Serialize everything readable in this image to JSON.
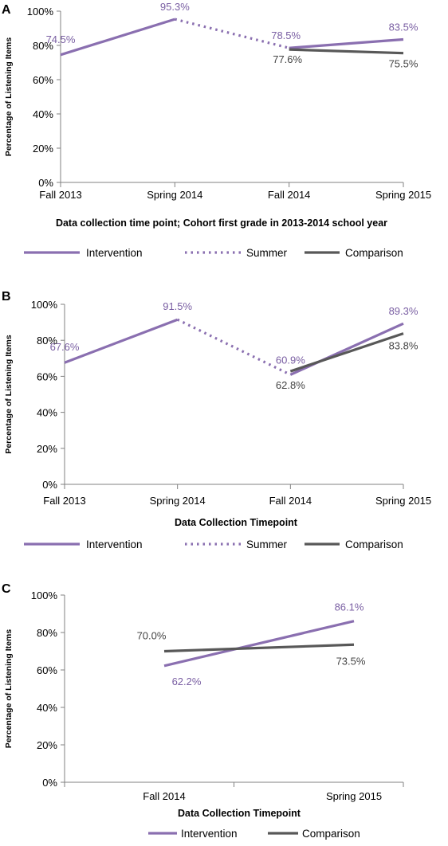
{
  "colors": {
    "intervention": "#8a6fb0",
    "comparison": "#585858",
    "intervention_label": "#7a5fa3",
    "comparison_label": "#444444",
    "axis": "#808080"
  },
  "chart_data": [
    {
      "panel": "A",
      "type": "line",
      "categories": [
        "Fall 2013",
        "Spring 2014",
        "Fall 2014",
        "Spring 2015"
      ],
      "xlabel": "Data collection time point; Cohort first grade in 2013-2014 school year",
      "ylabel": "Percentage of Listening Items",
      "ylim": [
        0,
        100
      ],
      "yticks": [
        "0%",
        "20%",
        "40%",
        "60%",
        "80%",
        "100%"
      ],
      "series": [
        {
          "name": "Intervention",
          "segments": [
            [
              0,
              1
            ],
            [
              2,
              3
            ]
          ],
          "values": [
            74.5,
            95.3,
            78.5,
            83.5
          ],
          "labels": [
            "74.5%",
            "95.3%",
            "78.5%",
            "83.5%"
          ]
        },
        {
          "name": "Summer",
          "segments": [
            [
              1,
              2
            ]
          ],
          "values": [
            null,
            95.3,
            78.5,
            null
          ]
        },
        {
          "name": "Comparison",
          "segments": [
            [
              2,
              3
            ]
          ],
          "values": [
            null,
            null,
            77.6,
            75.5
          ],
          "labels": [
            "",
            "",
            "77.6%",
            "75.5%"
          ]
        }
      ],
      "legend": [
        "Intervention",
        "Summer",
        "Comparison"
      ]
    },
    {
      "panel": "B",
      "type": "line",
      "categories": [
        "Fall 2013",
        "Spring 2014",
        "Fall 2014",
        "Spring 2015"
      ],
      "xlabel": "Data Collection Timepoint",
      "ylabel": "Percentage of Listening Items",
      "ylim": [
        0,
        100
      ],
      "yticks": [
        "0%",
        "20%",
        "40%",
        "60%",
        "80%",
        "100%"
      ],
      "series": [
        {
          "name": "Intervention",
          "segments": [
            [
              0,
              1
            ],
            [
              2,
              3
            ]
          ],
          "values": [
            67.6,
            91.5,
            60.9,
            89.3
          ],
          "labels": [
            "67.6%",
            "91.5%",
            "60.9%",
            "89.3%"
          ]
        },
        {
          "name": "Summer",
          "segments": [
            [
              1,
              2
            ]
          ],
          "values": [
            null,
            91.5,
            60.9,
            null
          ]
        },
        {
          "name": "Comparison",
          "segments": [
            [
              2,
              3
            ]
          ],
          "values": [
            null,
            null,
            62.8,
            83.8
          ],
          "labels": [
            "",
            "",
            "62.8%",
            "83.8%"
          ]
        }
      ],
      "legend": [
        "Intervention",
        "Summer",
        "Comparison"
      ]
    },
    {
      "panel": "C",
      "type": "line",
      "categories": [
        "Fall 2014",
        "Spring 2015"
      ],
      "xlabel": "Data Collection Timepoint",
      "ylabel": "Percentage of Listening Items",
      "ylim": [
        0,
        100
      ],
      "yticks": [
        "0%",
        "20%",
        "40%",
        "60%",
        "80%",
        "100%"
      ],
      "series": [
        {
          "name": "Intervention",
          "segments": [
            [
              0,
              1
            ]
          ],
          "values": [
            62.2,
            86.1
          ],
          "labels": [
            "62.2%",
            "86.1%"
          ]
        },
        {
          "name": "Comparison",
          "segments": [
            [
              0,
              1
            ]
          ],
          "values": [
            70.0,
            73.5
          ],
          "labels": [
            "70.0%",
            "73.5%"
          ]
        }
      ],
      "legend": [
        "Intervention",
        "Comparison"
      ]
    }
  ]
}
